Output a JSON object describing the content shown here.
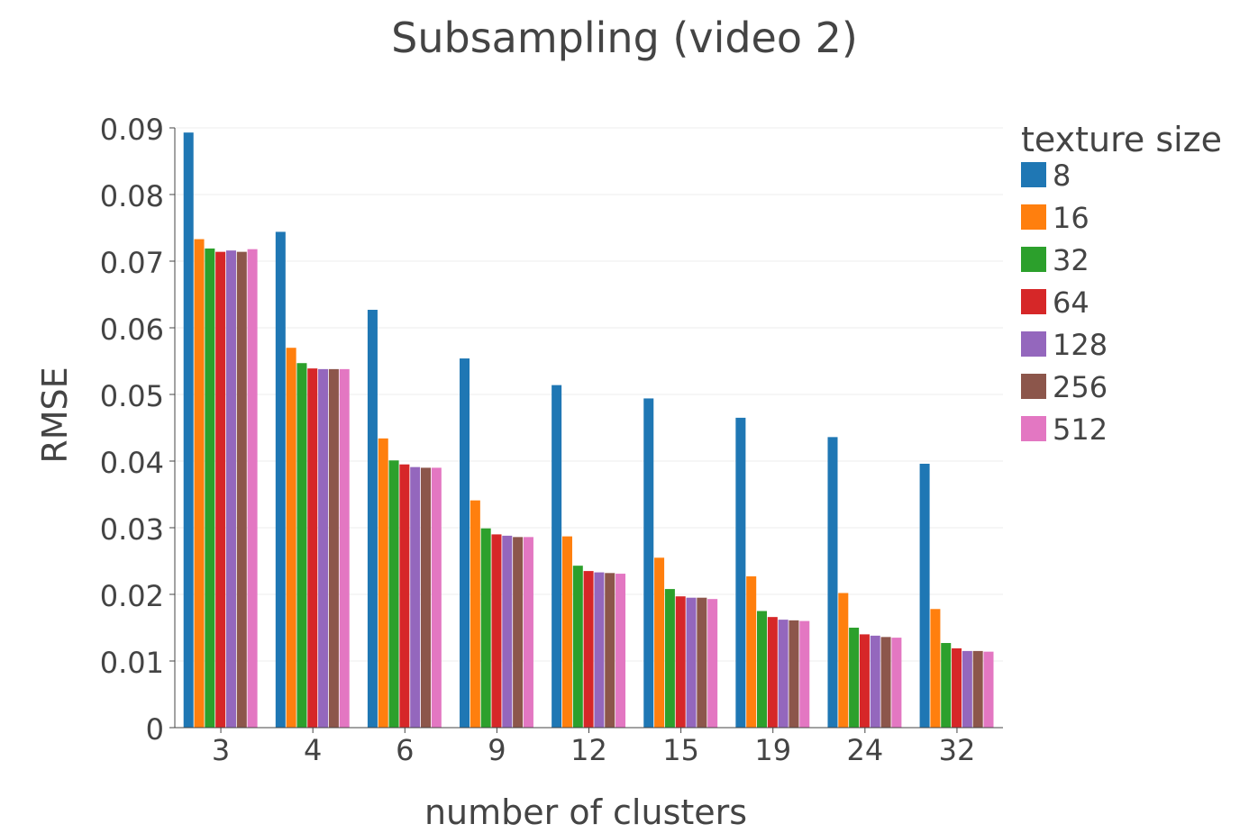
{
  "chart_data": {
    "type": "bar",
    "title": "Subsampling (video 2)",
    "xlabel": "number of clusters",
    "ylabel": "RMSE",
    "ylim": [
      0,
      0.09
    ],
    "yticks": [
      "0",
      "0.01",
      "0.02",
      "0.03",
      "0.04",
      "0.05",
      "0.06",
      "0.07",
      "0.08",
      "0.09"
    ],
    "grid": true,
    "legend_title": "texture size",
    "legend_position": "right",
    "categories": [
      "3",
      "4",
      "6",
      "9",
      "12",
      "15",
      "19",
      "24",
      "32"
    ],
    "series": [
      {
        "name": "8",
        "color": "#1f77b4",
        "values": [
          0.0893,
          0.0744,
          0.0627,
          0.0554,
          0.0514,
          0.0494,
          0.0465,
          0.0436,
          0.0396
        ]
      },
      {
        "name": "16",
        "color": "#ff7f0e",
        "values": [
          0.0733,
          0.057,
          0.0434,
          0.0341,
          0.0287,
          0.0255,
          0.0227,
          0.0202,
          0.0178
        ]
      },
      {
        "name": "32",
        "color": "#2ca02c",
        "values": [
          0.0719,
          0.0547,
          0.0401,
          0.0299,
          0.0243,
          0.0208,
          0.0175,
          0.015,
          0.0127
        ]
      },
      {
        "name": "64",
        "color": "#d62728",
        "values": [
          0.0714,
          0.0539,
          0.0395,
          0.029,
          0.0235,
          0.0197,
          0.0166,
          0.014,
          0.0119
        ]
      },
      {
        "name": "128",
        "color": "#9467bd",
        "values": [
          0.0716,
          0.0538,
          0.0391,
          0.0288,
          0.0233,
          0.0195,
          0.0162,
          0.0138,
          0.0115
        ]
      },
      {
        "name": "256",
        "color": "#8c564b",
        "values": [
          0.0714,
          0.0538,
          0.039,
          0.0286,
          0.0232,
          0.0195,
          0.0161,
          0.0136,
          0.0115
        ]
      },
      {
        "name": "512",
        "color": "#e377c2",
        "values": [
          0.0718,
          0.0538,
          0.039,
          0.0286,
          0.0231,
          0.0193,
          0.016,
          0.0135,
          0.0114
        ]
      }
    ]
  }
}
